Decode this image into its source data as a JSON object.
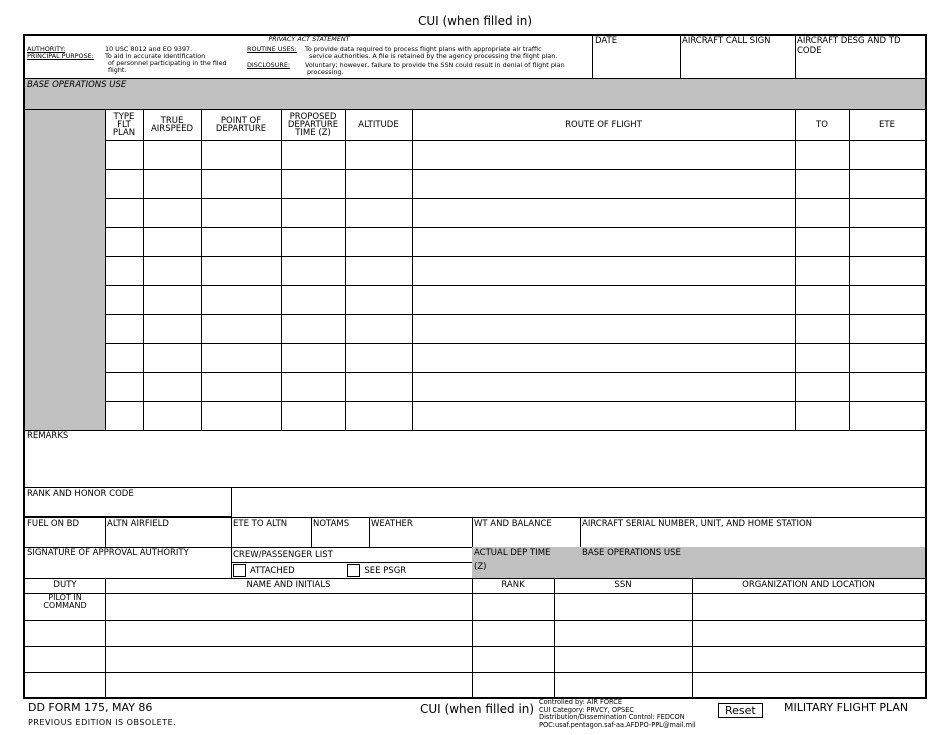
{
  "cui_header": "CUI (when filled in)",
  "privacy": {
    "title": "PRIVACY ACT STATEMENT",
    "authority_label": "AUTHORITY:",
    "authority_text": "10 USC 8012 and EO 9397.",
    "purpose_label": "PRINCIPAL PURPOSE:",
    "purpose_text_1": "To aid in accurate identification",
    "purpose_text_2": "of personnel participating in the filed",
    "purpose_text_3": "flight.",
    "routine_label": "ROUTINE USES:",
    "routine_text_1": "To provide data required to process flight plans with appropriate air traffic",
    "routine_text_2": "service authorities.  A file is retained by the agency processing the flight plan.",
    "disclosure_label": "DISCLOSURE:",
    "disclosure_text_1": "Voluntary; however, failure to provide the SSN could result in denial of flight plan",
    "disclosure_text_2": "processing."
  },
  "header_fields": {
    "date": "DATE",
    "call_sign": "AIRCRAFT CALL SIGN",
    "desg": "AIRCRAFT DESG AND TD CODE"
  },
  "base_ops_use": "BASE OPERATIONS USE",
  "route_table": {
    "headers": [
      "",
      "TYPE FLT PLAN",
      "TRUE AIRSPEED",
      "POINT OF DEPARTURE",
      "PROPOSED DEPARTURE TIME (Z)",
      "ALTITUDE",
      "ROUTE OF FLIGHT",
      "TO",
      "ETE"
    ],
    "row_count": 10
  },
  "remarks": "REMARKS",
  "rank_honor": "RANK AND HONOR CODE",
  "fuel_row": [
    "FUEL ON BD",
    "ALTN AIRFIELD",
    "ETE TO ALTN",
    "NOTAMS",
    "WEATHER",
    "WT AND BALANCE",
    "AIRCRAFT SERIAL NUMBER, UNIT, AND HOME STATION"
  ],
  "signature": "SIGNATURE OF APPROVAL AUTHORITY",
  "crew_list": "CREW/PASSENGER LIST",
  "attached": "ATTACHED",
  "see_psgr": "SEE PSGR",
  "actual_dep": "ACTUAL DEP TIME",
  "actual_dep_z": "(Z)",
  "base_ops_use_2": "BASE OPERATIONS USE",
  "crew_table": {
    "headers": [
      "DUTY",
      "NAME AND INITIALS",
      "RANK",
      "SSN",
      "ORGANIZATION AND LOCATION"
    ],
    "first_duty": "PILOT IN COMMAND"
  },
  "footer": {
    "form_id": "DD FORM 175, MAY 86",
    "obsolete": "PREVIOUS EDITION IS OBSOLETE.",
    "cui": "CUI (when filled in)",
    "controlled_1": "Controlled by: AIR FORCE",
    "controlled_2": "CUI Category: PRVCY, OPSEC",
    "controlled_3": "Distribution/Dissemination Control: FEDCON",
    "controlled_4": "POC:usaf.pentagon.saf-aa.AFDPO-PPL@mail.mil",
    "reset": "Reset",
    "title": "MILITARY FLIGHT PLAN"
  }
}
